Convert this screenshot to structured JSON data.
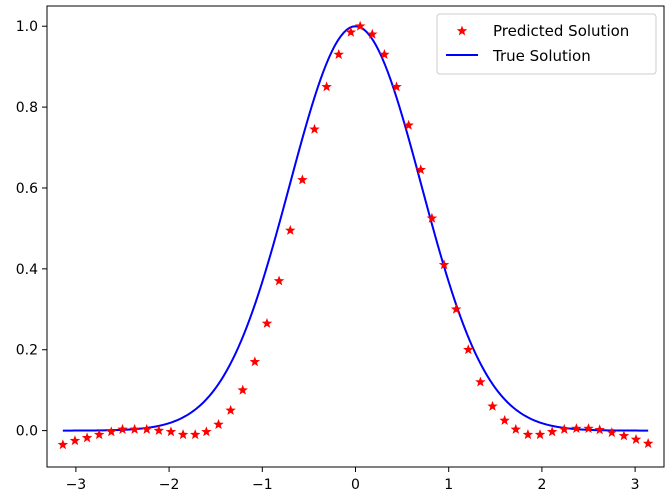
{
  "chart_data": {
    "type": "line",
    "title": "",
    "xlabel": "",
    "ylabel": "",
    "xlim": [
      -3.31,
      3.31
    ],
    "ylim": [
      -0.09,
      1.05
    ],
    "xticks": [
      -3,
      -2,
      -1,
      0,
      1,
      2,
      3
    ],
    "yticks": [
      0.0,
      0.2,
      0.4,
      0.6,
      0.8,
      1.0
    ],
    "xtick_labels": [
      "−3",
      "−2",
      "−1",
      "0",
      "1",
      "2",
      "3"
    ],
    "ytick_labels": [
      "0.0",
      "0.2",
      "0.4",
      "0.6",
      "0.8",
      "1.0"
    ],
    "grid": false,
    "legend_position": "top-right",
    "series": [
      {
        "name": "Predicted Solution",
        "type": "scatter",
        "marker": "star",
        "color": "#ff0000",
        "x": [
          -3.14,
          -3.01,
          -2.88,
          -2.75,
          -2.62,
          -2.5,
          -2.37,
          -2.24,
          -2.11,
          -1.98,
          -1.85,
          -1.72,
          -1.6,
          -1.47,
          -1.34,
          -1.21,
          -1.08,
          -0.95,
          -0.82,
          -0.7,
          -0.57,
          -0.44,
          -0.31,
          -0.18,
          -0.05,
          0.05,
          0.18,
          0.31,
          0.44,
          0.57,
          0.7,
          0.82,
          0.95,
          1.08,
          1.21,
          1.34,
          1.47,
          1.6,
          1.72,
          1.85,
          1.98,
          2.11,
          2.24,
          2.37,
          2.5,
          2.62,
          2.75,
          2.88,
          3.01,
          3.14
        ],
        "y": [
          -0.035,
          -0.025,
          -0.018,
          -0.01,
          -0.003,
          0.003,
          0.003,
          0.003,
          0.0,
          -0.003,
          -0.01,
          -0.01,
          -0.003,
          0.015,
          0.05,
          0.1,
          0.17,
          0.265,
          0.37,
          0.495,
          0.62,
          0.745,
          0.85,
          0.93,
          0.985,
          1.0,
          0.98,
          0.93,
          0.85,
          0.755,
          0.645,
          0.525,
          0.41,
          0.3,
          0.2,
          0.12,
          0.06,
          0.025,
          0.003,
          -0.01,
          -0.01,
          -0.003,
          0.003,
          0.005,
          0.005,
          0.002,
          -0.005,
          -0.013,
          -0.022,
          -0.032
        ]
      },
      {
        "name": "True Solution",
        "type": "line",
        "color": "#0000ff",
        "function": "exp(-x^2)",
        "x_range": [
          -3.14,
          3.14
        ],
        "samples": 200
      }
    ]
  }
}
